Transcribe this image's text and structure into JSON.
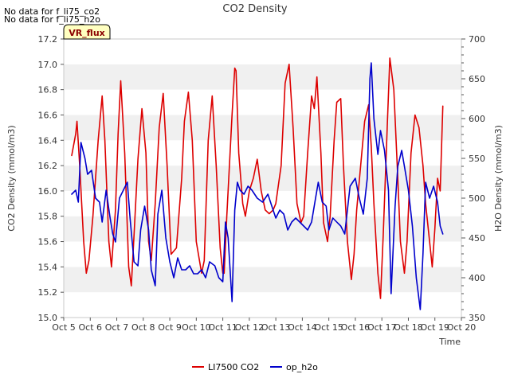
{
  "notes": [
    "No data for f_li75_co2",
    "No data for f_li75_h2o"
  ],
  "badge": "VR_flux",
  "chart_data": {
    "type": "line",
    "title": "CO2 Density",
    "xlabel": "Time",
    "ylabel_left": "CO2 Density (mmol/m3)",
    "ylabel_right": "H2O Density (mmol/m3)",
    "x_ticks": [
      "Oct 5",
      "Oct 6",
      "Oct 7",
      "Oct 8",
      "Oct 9",
      "Oct 10",
      "Oct 11",
      "Oct 12",
      "Oct 13",
      "Oct 14",
      "Oct 15",
      "Oct 16",
      "Oct 17",
      "Oct 18",
      "Oct 19",
      "Oct 20"
    ],
    "xlim": [
      5,
      20
    ],
    "ylim_left": [
      15.0,
      17.2
    ],
    "ylim_right": [
      350,
      700
    ],
    "yticks_left": [
      "15.0",
      "15.2",
      "15.4",
      "15.6",
      "15.8",
      "16.0",
      "16.2",
      "16.4",
      "16.6",
      "16.8",
      "17.0",
      "17.2"
    ],
    "yticks_right": [
      "350",
      "400",
      "450",
      "500",
      "550",
      "600",
      "650",
      "700"
    ],
    "grid": "horizontal bands",
    "legend_position": "bottom",
    "series": [
      {
        "name": "LI7500 CO2",
        "axis": "left",
        "color": "#dd0000",
        "x": [
          5.3,
          5.45,
          5.5,
          5.6,
          5.75,
          5.85,
          5.95,
          6.1,
          6.3,
          6.45,
          6.55,
          6.7,
          6.8,
          6.95,
          7.05,
          7.15,
          7.3,
          7.45,
          7.55,
          7.65,
          7.8,
          7.95,
          8.1,
          8.2,
          8.3,
          8.45,
          8.6,
          8.75,
          8.9,
          9.05,
          9.25,
          9.45,
          9.55,
          9.7,
          9.85,
          10.0,
          10.2,
          10.3,
          10.45,
          10.6,
          10.75,
          10.9,
          11.0,
          11.05,
          11.15,
          11.35,
          11.45,
          11.5,
          11.6,
          11.75,
          11.85,
          12.0,
          12.15,
          12.3,
          12.45,
          12.6,
          12.75,
          12.9,
          13.0,
          13.2,
          13.35,
          13.5,
          13.65,
          13.8,
          13.95,
          14.05,
          14.2,
          14.35,
          14.45,
          14.55,
          14.7,
          14.8,
          14.95,
          15.05,
          15.2,
          15.3,
          15.45,
          15.55,
          15.7,
          15.85,
          15.95,
          16.05,
          16.2,
          16.35,
          16.5,
          16.6,
          16.7,
          16.85,
          16.95,
          17.05,
          17.2,
          17.3,
          17.45,
          17.6,
          17.7,
          17.85,
          17.95,
          18.1,
          18.25,
          18.4,
          18.55,
          18.65,
          18.8,
          18.9,
          19.0,
          19.1,
          19.2,
          19.3
        ],
        "y": [
          16.28,
          16.45,
          16.55,
          16.2,
          15.6,
          15.35,
          15.45,
          15.8,
          16.4,
          16.75,
          16.4,
          15.6,
          15.4,
          15.85,
          16.45,
          16.87,
          16.3,
          15.4,
          15.25,
          15.65,
          16.25,
          16.65,
          16.3,
          15.6,
          15.45,
          15.9,
          16.5,
          16.77,
          16.2,
          15.5,
          15.55,
          16.1,
          16.55,
          16.78,
          16.4,
          15.6,
          15.35,
          15.45,
          16.4,
          16.75,
          16.2,
          15.55,
          15.35,
          15.35,
          15.8,
          16.6,
          16.97,
          16.95,
          16.3,
          15.9,
          15.8,
          16.0,
          16.1,
          16.25,
          16.0,
          15.85,
          15.82,
          15.85,
          15.9,
          16.2,
          16.85,
          17.0,
          16.5,
          15.9,
          15.75,
          15.8,
          16.3,
          16.75,
          16.65,
          16.9,
          16.3,
          15.75,
          15.6,
          15.8,
          16.4,
          16.7,
          16.73,
          16.2,
          15.6,
          15.3,
          15.5,
          15.85,
          16.2,
          16.55,
          16.68,
          16.35,
          15.9,
          15.35,
          15.15,
          15.65,
          16.5,
          17.05,
          16.8,
          16.1,
          15.6,
          15.35,
          15.6,
          16.3,
          16.6,
          16.5,
          16.2,
          15.9,
          15.6,
          15.4,
          15.7,
          16.1,
          16.0,
          16.67
        ]
      },
      {
        "name": "op_h2o",
        "axis": "right",
        "color": "#0000cc",
        "x": [
          5.3,
          5.45,
          5.55,
          5.65,
          5.8,
          5.9,
          6.05,
          6.2,
          6.35,
          6.45,
          6.6,
          6.75,
          6.85,
          6.95,
          7.1,
          7.25,
          7.4,
          7.5,
          7.65,
          7.8,
          7.9,
          8.05,
          8.2,
          8.3,
          8.45,
          8.55,
          8.7,
          8.85,
          9.0,
          9.15,
          9.3,
          9.45,
          9.6,
          9.75,
          9.9,
          10.05,
          10.2,
          10.35,
          10.5,
          10.7,
          10.85,
          11.0,
          11.1,
          11.2,
          11.35,
          11.45,
          11.55,
          11.65,
          11.8,
          11.95,
          12.1,
          12.3,
          12.5,
          12.7,
          12.85,
          13.0,
          13.15,
          13.3,
          13.45,
          13.6,
          13.75,
          13.9,
          14.05,
          14.2,
          14.35,
          14.5,
          14.6,
          14.75,
          14.9,
          15.0,
          15.15,
          15.3,
          15.45,
          15.6,
          15.8,
          16.0,
          16.15,
          16.3,
          16.45,
          16.55,
          16.6,
          16.7,
          16.85,
          16.95,
          17.1,
          17.25,
          17.35,
          17.5,
          17.6,
          17.75,
          17.85,
          18.0,
          18.15,
          18.3,
          18.45,
          18.55,
          18.65,
          18.8,
          18.95,
          19.1,
          19.2,
          19.3
        ],
        "y": [
          505,
          510,
          495,
          570,
          550,
          530,
          535,
          500,
          495,
          470,
          510,
          475,
          455,
          445,
          500,
          510,
          520,
          475,
          420,
          415,
          460,
          490,
          460,
          410,
          390,
          480,
          510,
          450,
          420,
          400,
          425,
          410,
          410,
          415,
          405,
          405,
          410,
          400,
          420,
          415,
          400,
          395,
          470,
          450,
          370,
          485,
          520,
          510,
          505,
          515,
          510,
          500,
          495,
          505,
          490,
          475,
          485,
          480,
          460,
          470,
          475,
          470,
          465,
          460,
          470,
          500,
          520,
          495,
          490,
          460,
          475,
          470,
          465,
          455,
          515,
          525,
          500,
          480,
          525,
          650,
          670,
          600,
          555,
          585,
          560,
          510,
          380,
          490,
          540,
          560,
          540,
          510,
          465,
          400,
          360,
          430,
          520,
          500,
          515,
          495,
          465,
          455
        ]
      }
    ]
  }
}
